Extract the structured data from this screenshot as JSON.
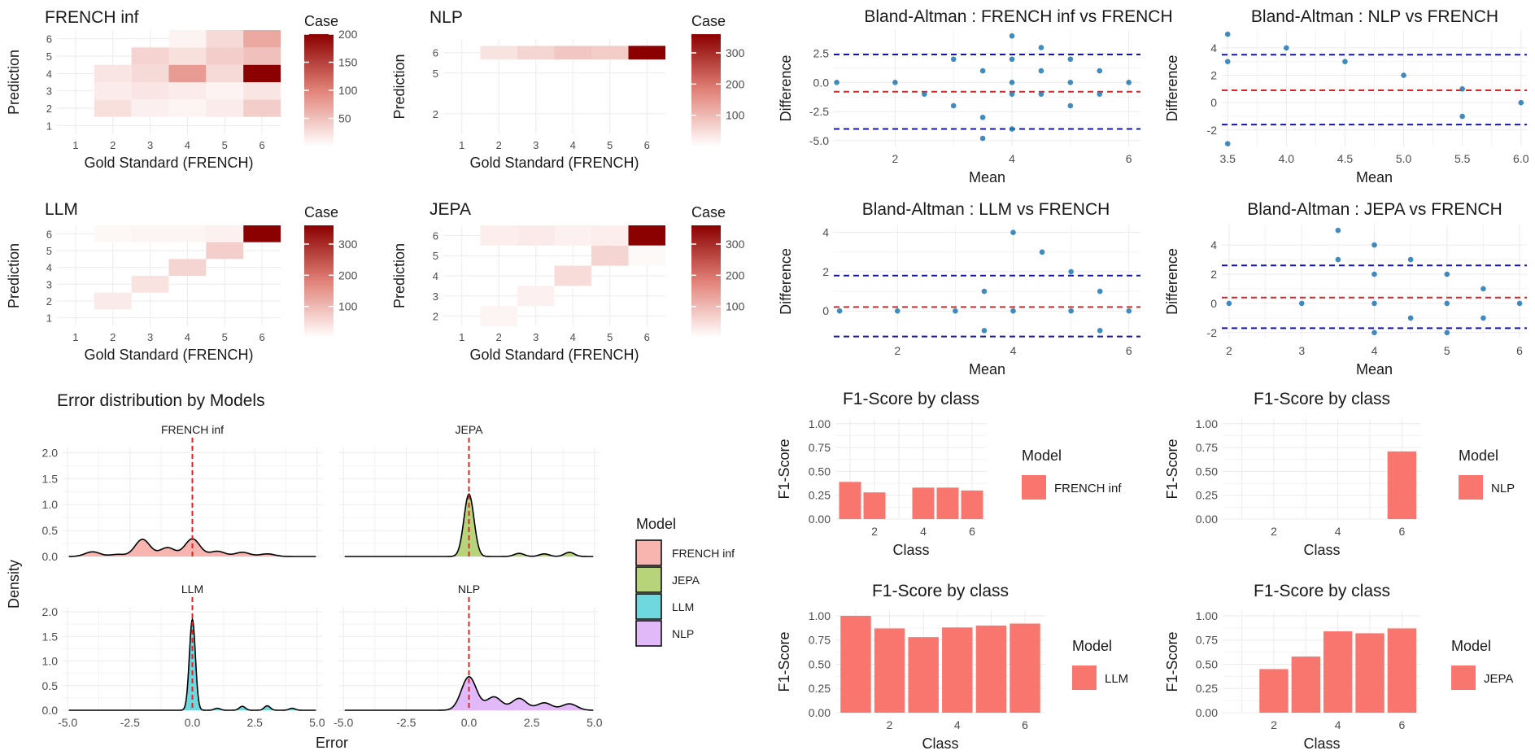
{
  "colors": {
    "grid": "#ebebeb",
    "text": "#1a1a1a",
    "tick": "#4d4d4d",
    "heat_low": "#ffffff",
    "heat_high": "#8b0000",
    "ba_point": "#1f77b4",
    "ba_mean_line": "#d62728",
    "ba_limit_line": "#1414b4",
    "bar": "#f8766d",
    "zero_line": "#d62728",
    "density": {
      "FRENCH inf": "#f8b5b0",
      "JEPA": "#b8d47a",
      "LLM": "#6ed8de",
      "NLP": "#e1b8f8"
    }
  },
  "chart_data": [
    {
      "id": "heat-french-inf",
      "type": "heatmap",
      "title": "FRENCH inf",
      "xlabel": "Gold Standard (FRENCH)",
      "ylabel": "Prediction",
      "x_ticks": [
        "1",
        "2",
        "3",
        "4",
        "5",
        "6"
      ],
      "y_ticks": [
        "1",
        "2",
        "3",
        "4",
        "5",
        "6"
      ],
      "y_range": [
        0.5,
        6.5
      ],
      "cells": [
        {
          "x": 2,
          "y": 2,
          "v": 25
        },
        {
          "x": 3,
          "y": 2,
          "v": 12
        },
        {
          "x": 4,
          "y": 2,
          "v": 8
        },
        {
          "x": 5,
          "y": 2,
          "v": 15
        },
        {
          "x": 6,
          "y": 2,
          "v": 40
        },
        {
          "x": 2,
          "y": 3,
          "v": 15
        },
        {
          "x": 3,
          "y": 3,
          "v": 20
        },
        {
          "x": 4,
          "y": 3,
          "v": 15
        },
        {
          "x": 5,
          "y": 3,
          "v": 10
        },
        {
          "x": 6,
          "y": 3,
          "v": 20
        },
        {
          "x": 2,
          "y": 4,
          "v": 20
        },
        {
          "x": 3,
          "y": 4,
          "v": 30
        },
        {
          "x": 4,
          "y": 4,
          "v": 80
        },
        {
          "x": 5,
          "y": 4,
          "v": 30
        },
        {
          "x": 6,
          "y": 4,
          "v": 200
        },
        {
          "x": 3,
          "y": 5,
          "v": 35
        },
        {
          "x": 4,
          "y": 5,
          "v": 25
        },
        {
          "x": 5,
          "y": 5,
          "v": 40
        },
        {
          "x": 6,
          "y": 5,
          "v": 50
        },
        {
          "x": 4,
          "y": 6,
          "v": 10
        },
        {
          "x": 5,
          "y": 6,
          "v": 30
        },
        {
          "x": 6,
          "y": 6,
          "v": 70
        }
      ],
      "legend": {
        "title": "Case",
        "min": 0,
        "max": 200,
        "ticks": [
          50,
          100,
          150,
          200
        ]
      }
    },
    {
      "id": "heat-nlp",
      "type": "heatmap",
      "title": "NLP",
      "xlabel": "Gold Standard (FRENCH)",
      "ylabel": "Prediction",
      "x_ticks": [
        "1",
        "2",
        "3",
        "4",
        "5",
        "6"
      ],
      "y_ticks": [
        "2",
        "5",
        "6"
      ],
      "y_range": [
        0.5,
        7.5
      ],
      "y_tick_positions": [
        2,
        5,
        6.5
      ],
      "cells": [
        {
          "x": 2,
          "y": 6.5,
          "v": 40
        },
        {
          "x": 3,
          "y": 6.5,
          "v": 60
        },
        {
          "x": 4,
          "y": 6.5,
          "v": 80
        },
        {
          "x": 5,
          "y": 6.5,
          "v": 75
        },
        {
          "x": 6,
          "y": 6.5,
          "v": 360
        }
      ],
      "legend": {
        "title": "Case",
        "min": 0,
        "max": 360,
        "ticks": [
          100,
          200,
          300
        ]
      }
    },
    {
      "id": "heat-llm",
      "type": "heatmap",
      "title": "LLM",
      "xlabel": "Gold Standard (FRENCH)",
      "ylabel": "Prediction",
      "x_ticks": [
        "1",
        "2",
        "3",
        "4",
        "5",
        "6"
      ],
      "y_ticks": [
        "1",
        "2",
        "3",
        "4",
        "5",
        "6"
      ],
      "y_range": [
        0.5,
        6.5
      ],
      "cells": [
        {
          "x": 2,
          "y": 2,
          "v": 30
        },
        {
          "x": 3,
          "y": 3,
          "v": 40
        },
        {
          "x": 4,
          "y": 4,
          "v": 60
        },
        {
          "x": 5,
          "y": 5,
          "v": 70
        },
        {
          "x": 6,
          "y": 6,
          "v": 360
        },
        {
          "x": 2,
          "y": 6,
          "v": 12
        },
        {
          "x": 3,
          "y": 6,
          "v": 15
        },
        {
          "x": 4,
          "y": 6,
          "v": 15
        },
        {
          "x": 5,
          "y": 6,
          "v": 20
        }
      ],
      "legend": {
        "title": "Case",
        "min": 0,
        "max": 360,
        "ticks": [
          100,
          200,
          300
        ]
      }
    },
    {
      "id": "heat-jepa",
      "type": "heatmap",
      "title": "JEPA",
      "xlabel": "Gold Standard (FRENCH)",
      "ylabel": "Prediction",
      "x_ticks": [
        "1",
        "2",
        "3",
        "4",
        "5",
        "6"
      ],
      "y_ticks": [
        "2",
        "3",
        "4",
        "5",
        "6"
      ],
      "y_range": [
        1.5,
        6.5
      ],
      "cells": [
        {
          "x": 2,
          "y": 2,
          "v": 15
        },
        {
          "x": 3,
          "y": 3,
          "v": 20
        },
        {
          "x": 4,
          "y": 4,
          "v": 50
        },
        {
          "x": 5,
          "y": 5,
          "v": 60
        },
        {
          "x": 6,
          "y": 6,
          "v": 360
        },
        {
          "x": 2,
          "y": 6,
          "v": 25
        },
        {
          "x": 3,
          "y": 6,
          "v": 30
        },
        {
          "x": 4,
          "y": 6,
          "v": 20
        },
        {
          "x": 5,
          "y": 6,
          "v": 25
        },
        {
          "x": 6,
          "y": 5,
          "v": 8
        }
      ],
      "legend": {
        "title": "Case",
        "min": 0,
        "max": 360,
        "ticks": [
          100,
          200,
          300
        ]
      }
    },
    {
      "id": "ba-french-inf",
      "type": "scatter",
      "title": "Bland-Altman : FRENCH inf vs FRENCH",
      "xlabel": "Mean",
      "ylabel": "Difference",
      "xlim": [
        0.95,
        6.2
      ],
      "ylim": [
        -5.5,
        4.5
      ],
      "x_ticks": [
        2,
        4,
        6
      ],
      "y_ticks": [
        -5.0,
        -2.5,
        0.0,
        2.5
      ],
      "y_tick_labels": [
        "-5.0",
        "-2.5",
        "0.0",
        "2.5"
      ],
      "mean": -0.8,
      "upper": 2.4,
      "lower": -4.0,
      "points": [
        [
          1,
          0
        ],
        [
          2,
          0
        ],
        [
          2.5,
          -1
        ],
        [
          3,
          2
        ],
        [
          3,
          -2
        ],
        [
          3.5,
          1
        ],
        [
          3.5,
          -3
        ],
        [
          3.5,
          -4.8
        ],
        [
          4,
          4
        ],
        [
          4,
          2
        ],
        [
          4,
          0
        ],
        [
          4,
          -1
        ],
        [
          4,
          -4
        ],
        [
          4.5,
          3
        ],
        [
          4.5,
          1
        ],
        [
          4.5,
          -1
        ],
        [
          5,
          2
        ],
        [
          5,
          0
        ],
        [
          5,
          -2
        ],
        [
          5.5,
          1
        ],
        [
          5.5,
          -1
        ],
        [
          6,
          0
        ]
      ]
    },
    {
      "id": "ba-nlp",
      "type": "scatter",
      "title": "Bland-Altman : NLP vs FRENCH",
      "xlabel": "Mean",
      "ylabel": "Difference",
      "xlim": [
        3.45,
        6.05
      ],
      "ylim": [
        -3.2,
        5.3
      ],
      "x_ticks": [
        3.5,
        4.0,
        4.5,
        5.0,
        5.5,
        6.0
      ],
      "x_tick_labels": [
        "3.5",
        "4.0",
        "4.5",
        "5.0",
        "5.5",
        "6.0"
      ],
      "y_ticks": [
        -2,
        0,
        2,
        4
      ],
      "mean": 0.9,
      "upper": 3.5,
      "lower": -1.6,
      "points": [
        [
          3.5,
          5
        ],
        [
          3.5,
          3
        ],
        [
          3.5,
          -3
        ],
        [
          4,
          4
        ],
        [
          4.5,
          3
        ],
        [
          5,
          2
        ],
        [
          5.5,
          1
        ],
        [
          5.5,
          -1
        ],
        [
          6,
          0
        ]
      ]
    },
    {
      "id": "ba-llm",
      "type": "scatter",
      "title": "Bland-Altman : LLM vs FRENCH",
      "xlabel": "Mean",
      "ylabel": "Difference",
      "xlim": [
        0.9,
        6.2
      ],
      "ylim": [
        -1.4,
        4.4
      ],
      "x_ticks": [
        2,
        4,
        6
      ],
      "y_ticks": [
        0,
        2,
        4
      ],
      "mean": 0.2,
      "upper": 1.8,
      "lower": -1.3,
      "points": [
        [
          1,
          0
        ],
        [
          2,
          0
        ],
        [
          3,
          0
        ],
        [
          3.5,
          1
        ],
        [
          3.5,
          -1
        ],
        [
          4,
          4
        ],
        [
          4,
          0
        ],
        [
          4.5,
          3
        ],
        [
          5,
          2
        ],
        [
          5,
          0
        ],
        [
          5.5,
          1
        ],
        [
          5.5,
          -1
        ],
        [
          6,
          0
        ]
      ]
    },
    {
      "id": "ba-jepa",
      "type": "scatter",
      "title": "Bland-Altman : JEPA vs FRENCH",
      "xlabel": "Mean",
      "ylabel": "Difference",
      "xlim": [
        1.9,
        6.1
      ],
      "ylim": [
        -2.4,
        5.4
      ],
      "x_ticks": [
        2,
        3,
        4,
        5,
        6
      ],
      "y_ticks": [
        -2,
        0,
        2,
        4
      ],
      "mean": 0.4,
      "upper": 2.6,
      "lower": -1.7,
      "points": [
        [
          2,
          0
        ],
        [
          3,
          0
        ],
        [
          3.5,
          5
        ],
        [
          3.5,
          3
        ],
        [
          4,
          4
        ],
        [
          4,
          2
        ],
        [
          4,
          0
        ],
        [
          4,
          -2
        ],
        [
          4.5,
          3
        ],
        [
          4.5,
          -1
        ],
        [
          5,
          2
        ],
        [
          5,
          0
        ],
        [
          5,
          -2
        ],
        [
          5.5,
          1
        ],
        [
          5.5,
          -1
        ],
        [
          6,
          0
        ]
      ]
    },
    {
      "id": "f1-french-inf",
      "type": "bar",
      "title": "F1-Score by class",
      "xlabel": "Class",
      "ylabel": "F1-Score",
      "ylim": [
        0,
        1.05
      ],
      "categories": [
        1,
        2,
        3,
        4,
        5,
        6
      ],
      "values": [
        0.39,
        0.28,
        null,
        0.33,
        0.33,
        0.3
      ],
      "x_ticks": [
        2,
        4,
        6
      ],
      "y_ticks": [
        0,
        0.25,
        0.5,
        0.75,
        1.0
      ],
      "y_tick_labels": [
        "0.00",
        "0.25",
        "0.50",
        "0.75",
        "1.00"
      ],
      "legend_title": "Model",
      "series_name": "FRENCH inf"
    },
    {
      "id": "f1-nlp",
      "type": "bar",
      "title": "F1-Score by class",
      "xlabel": "Class",
      "ylabel": "F1-Score",
      "ylim": [
        0,
        1.05
      ],
      "categories": [
        1,
        2,
        3,
        4,
        5,
        6
      ],
      "values": [
        null,
        null,
        null,
        null,
        null,
        0.71
      ],
      "x_ticks": [
        2,
        4,
        6
      ],
      "y_ticks": [
        0,
        0.25,
        0.5,
        0.75,
        1.0
      ],
      "y_tick_labels": [
        "0.00",
        "0.25",
        "0.50",
        "0.75",
        "1.00"
      ],
      "legend_title": "Model",
      "series_name": "NLP"
    },
    {
      "id": "f1-llm",
      "type": "bar",
      "title": "F1-Score by class",
      "xlabel": "Class",
      "ylabel": "F1-Score",
      "ylim": [
        0,
        1.05
      ],
      "categories": [
        1,
        2,
        3,
        4,
        5,
        6
      ],
      "values": [
        1.0,
        0.87,
        0.78,
        0.88,
        0.9,
        0.92
      ],
      "x_ticks": [
        2,
        4,
        6
      ],
      "y_ticks": [
        0,
        0.25,
        0.5,
        0.75,
        1.0
      ],
      "y_tick_labels": [
        "0.00",
        "0.25",
        "0.50",
        "0.75",
        "1.00"
      ],
      "legend_title": "Model",
      "series_name": "LLM"
    },
    {
      "id": "f1-jepa",
      "type": "bar",
      "title": "F1-Score by class",
      "xlabel": "Class",
      "ylabel": "F1-Score",
      "ylim": [
        0,
        1.05
      ],
      "categories": [
        1,
        2,
        3,
        4,
        5,
        6
      ],
      "values": [
        null,
        0.45,
        0.58,
        0.84,
        0.82,
        0.87
      ],
      "x_ticks": [
        2,
        4,
        6
      ],
      "y_ticks": [
        0,
        0.25,
        0.5,
        0.75,
        1.0
      ],
      "y_tick_labels": [
        "0.00",
        "0.25",
        "0.50",
        "0.75",
        "1.00"
      ],
      "legend_title": "Model",
      "series_name": "JEPA"
    },
    {
      "id": "density",
      "type": "area",
      "title": "Error distribution by Models",
      "xlabel": "Error",
      "ylabel": "Density",
      "xlim": [
        -5.2,
        5.2
      ],
      "ylim": [
        0,
        2.1
      ],
      "x_ticks": [
        -5,
        -2.5,
        0,
        2.5,
        5
      ],
      "x_tick_labels": [
        "-5.0",
        "-2.5",
        "0.0",
        "2.5",
        "5.0"
      ],
      "y_ticks": [
        0,
        0.5,
        1,
        1.5,
        2
      ],
      "y_tick_labels": [
        "0.0",
        "0.5",
        "1.0",
        "1.5",
        "2.0"
      ],
      "legend_title": "Model",
      "panels": [
        {
          "name": "FRENCH inf",
          "components": [
            [
              -4,
              0.09,
              0.3
            ],
            [
              -3,
              0.04,
              0.3
            ],
            [
              -2,
              0.33,
              0.3
            ],
            [
              -1,
              0.17,
              0.3
            ],
            [
              0,
              0.34,
              0.3
            ],
            [
              1,
              0.1,
              0.3
            ],
            [
              2,
              0.08,
              0.3
            ],
            [
              3,
              0.05,
              0.3
            ]
          ]
        },
        {
          "name": "JEPA",
          "components": [
            [
              0,
              1.2,
              0.2
            ],
            [
              2,
              0.06,
              0.2
            ],
            [
              3,
              0.05,
              0.2
            ],
            [
              4,
              0.08,
              0.2
            ]
          ]
        },
        {
          "name": "LLM",
          "components": [
            [
              0,
              1.85,
              0.12
            ],
            [
              1,
              0.04,
              0.12
            ],
            [
              2,
              0.08,
              0.12
            ],
            [
              3,
              0.09,
              0.12
            ],
            [
              4,
              0.04,
              0.12
            ]
          ]
        },
        {
          "name": "NLP",
          "components": [
            [
              0,
              0.68,
              0.3
            ],
            [
              1,
              0.27,
              0.3
            ],
            [
              2,
              0.24,
              0.3
            ],
            [
              3,
              0.15,
              0.3
            ],
            [
              4,
              0.13,
              0.3
            ]
          ]
        }
      ]
    }
  ]
}
